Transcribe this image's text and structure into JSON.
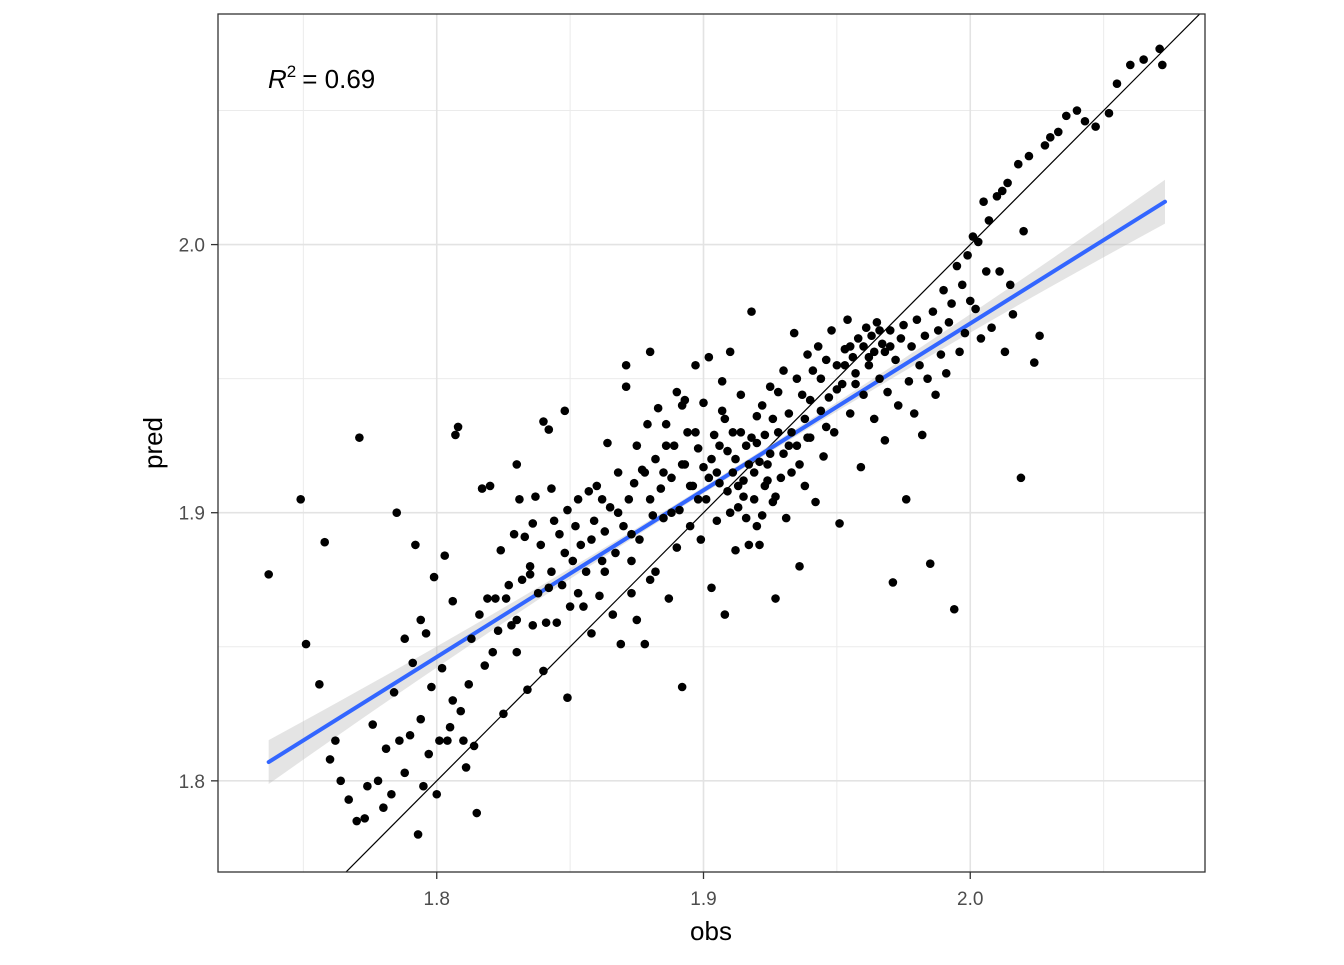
{
  "chart_data": {
    "type": "scatter",
    "title": "",
    "xlabel": "obs",
    "ylabel": "pred",
    "xlim": [
      1.718,
      2.088
    ],
    "ylim": [
      1.766,
      2.086
    ],
    "x_ticks": [
      1.8,
      1.9,
      2.0
    ],
    "y_ticks": [
      1.8,
      1.9,
      2.0
    ],
    "x_tick_labels": [
      "1.8",
      "1.9",
      "2.0"
    ],
    "y_tick_labels": [
      "1.8",
      "1.9",
      "2.0"
    ],
    "grid": true,
    "annotation": {
      "r2_symbol": "R",
      "r2_exponent": "2",
      "r2_text": "= 0.69",
      "r2_value": 0.69
    },
    "identity_line": {
      "slope": 1,
      "intercept": 0
    },
    "fit_line": {
      "method": "lm",
      "x_range": [
        1.737,
        2.073
      ],
      "y_start": 1.807,
      "y_end": 2.016,
      "se_band": true,
      "color": "#3366FF",
      "band_color": "#BBBBBB"
    },
    "points": [
      [
        1.737,
        1.877
      ],
      [
        1.749,
        1.905
      ],
      [
        1.751,
        1.851
      ],
      [
        1.756,
        1.836
      ],
      [
        1.758,
        1.889
      ],
      [
        1.76,
        1.808
      ],
      [
        1.762,
        1.815
      ],
      [
        1.764,
        1.8
      ],
      [
        1.767,
        1.793
      ],
      [
        1.77,
        1.785
      ],
      [
        1.771,
        1.928
      ],
      [
        1.773,
        1.786
      ],
      [
        1.774,
        1.798
      ],
      [
        1.776,
        1.821
      ],
      [
        1.778,
        1.8
      ],
      [
        1.78,
        1.79
      ],
      [
        1.781,
        1.812
      ],
      [
        1.783,
        1.795
      ],
      [
        1.784,
        1.833
      ],
      [
        1.785,
        1.9
      ],
      [
        1.786,
        1.815
      ],
      [
        1.788,
        1.803
      ],
      [
        1.788,
        1.853
      ],
      [
        1.79,
        1.817
      ],
      [
        1.791,
        1.844
      ],
      [
        1.792,
        1.888
      ],
      [
        1.793,
        1.78
      ],
      [
        1.794,
        1.823
      ],
      [
        1.794,
        1.86
      ],
      [
        1.795,
        1.798
      ],
      [
        1.796,
        1.855
      ],
      [
        1.797,
        1.81
      ],
      [
        1.798,
        1.835
      ],
      [
        1.799,
        1.876
      ],
      [
        1.8,
        1.795
      ],
      [
        1.801,
        1.815
      ],
      [
        1.802,
        1.842
      ],
      [
        1.803,
        1.884
      ],
      [
        1.804,
        1.815
      ],
      [
        1.805,
        1.82
      ],
      [
        1.806,
        1.83
      ],
      [
        1.806,
        1.867
      ],
      [
        1.807,
        1.929
      ],
      [
        1.808,
        1.932
      ],
      [
        1.809,
        1.826
      ],
      [
        1.81,
        1.815
      ],
      [
        1.811,
        1.805
      ],
      [
        1.812,
        1.836
      ],
      [
        1.813,
        1.853
      ],
      [
        1.814,
        1.813
      ],
      [
        1.815,
        1.788
      ],
      [
        1.816,
        1.862
      ],
      [
        1.817,
        1.909
      ],
      [
        1.818,
        1.843
      ],
      [
        1.819,
        1.868
      ],
      [
        1.82,
        1.91
      ],
      [
        1.821,
        1.848
      ],
      [
        1.822,
        1.868
      ],
      [
        1.823,
        1.856
      ],
      [
        1.824,
        1.886
      ],
      [
        1.825,
        1.825
      ],
      [
        1.826,
        1.868
      ],
      [
        1.827,
        1.873
      ],
      [
        1.828,
        1.858
      ],
      [
        1.829,
        1.892
      ],
      [
        1.83,
        1.918
      ],
      [
        1.83,
        1.848
      ],
      [
        1.831,
        1.905
      ],
      [
        1.832,
        1.875
      ],
      [
        1.833,
        1.891
      ],
      [
        1.834,
        1.834
      ],
      [
        1.835,
        1.877
      ],
      [
        1.836,
        1.896
      ],
      [
        1.836,
        1.858
      ],
      [
        1.837,
        1.906
      ],
      [
        1.838,
        1.87
      ],
      [
        1.839,
        1.888
      ],
      [
        1.84,
        1.934
      ],
      [
        1.84,
        1.841
      ],
      [
        1.841,
        1.859
      ],
      [
        1.842,
        1.931
      ],
      [
        1.843,
        1.878
      ],
      [
        1.843,
        1.909
      ],
      [
        1.844,
        1.897
      ],
      [
        1.845,
        1.859
      ],
      [
        1.846,
        1.892
      ],
      [
        1.847,
        1.873
      ],
      [
        1.848,
        1.938
      ],
      [
        1.849,
        1.901
      ],
      [
        1.849,
        1.831
      ],
      [
        1.85,
        1.865
      ],
      [
        1.851,
        1.882
      ],
      [
        1.852,
        1.895
      ],
      [
        1.853,
        1.905
      ],
      [
        1.854,
        1.888
      ],
      [
        1.855,
        1.865
      ],
      [
        1.856,
        1.878
      ],
      [
        1.857,
        1.908
      ],
      [
        1.858,
        1.855
      ],
      [
        1.859,
        1.897
      ],
      [
        1.86,
        1.91
      ],
      [
        1.861,
        1.869
      ],
      [
        1.862,
        1.905
      ],
      [
        1.862,
        1.882
      ],
      [
        1.863,
        1.893
      ],
      [
        1.864,
        1.926
      ],
      [
        1.865,
        1.902
      ],
      [
        1.866,
        1.862
      ],
      [
        1.867,
        1.885
      ],
      [
        1.868,
        1.915
      ],
      [
        1.869,
        1.851
      ],
      [
        1.87,
        1.895
      ],
      [
        1.871,
        1.947
      ],
      [
        1.871,
        1.955
      ],
      [
        1.872,
        1.905
      ],
      [
        1.873,
        1.882
      ],
      [
        1.874,
        1.911
      ],
      [
        1.875,
        1.86
      ],
      [
        1.876,
        1.89
      ],
      [
        1.877,
        1.916
      ],
      [
        1.878,
        1.851
      ],
      [
        1.879,
        1.933
      ],
      [
        1.88,
        1.96
      ],
      [
        1.881,
        1.899
      ],
      [
        1.882,
        1.92
      ],
      [
        1.882,
        1.878
      ],
      [
        1.883,
        1.939
      ],
      [
        1.884,
        1.909
      ],
      [
        1.885,
        1.898
      ],
      [
        1.886,
        1.933
      ],
      [
        1.887,
        1.868
      ],
      [
        1.888,
        1.913
      ],
      [
        1.889,
        1.925
      ],
      [
        1.89,
        1.887
      ],
      [
        1.891,
        1.901
      ],
      [
        1.892,
        1.835
      ],
      [
        1.893,
        1.942
      ],
      [
        1.893,
        1.918
      ],
      [
        1.894,
        1.93
      ],
      [
        1.895,
        1.895
      ],
      [
        1.896,
        1.91
      ],
      [
        1.897,
        1.955
      ],
      [
        1.898,
        1.924
      ],
      [
        1.899,
        1.89
      ],
      [
        1.9,
        1.917
      ],
      [
        1.9,
        1.941
      ],
      [
        1.901,
        1.905
      ],
      [
        1.902,
        1.958
      ],
      [
        1.903,
        1.872
      ],
      [
        1.904,
        1.929
      ],
      [
        1.905,
        1.897
      ],
      [
        1.906,
        1.911
      ],
      [
        1.907,
        1.949
      ],
      [
        1.908,
        1.862
      ],
      [
        1.909,
        1.923
      ],
      [
        1.91,
        1.9
      ],
      [
        1.91,
        1.96
      ],
      [
        1.911,
        1.93
      ],
      [
        1.912,
        1.886
      ],
      [
        1.913,
        1.91
      ],
      [
        1.914,
        1.944
      ],
      [
        1.915,
        1.906
      ],
      [
        1.916,
        1.925
      ],
      [
        1.917,
        1.888
      ],
      [
        1.918,
        1.975
      ],
      [
        1.919,
        1.915
      ],
      [
        1.92,
        1.936
      ],
      [
        1.92,
        1.895
      ],
      [
        1.921,
        1.919
      ],
      [
        1.922,
        1.899
      ],
      [
        1.923,
        1.929
      ],
      [
        1.924,
        1.912
      ],
      [
        1.925,
        1.947
      ],
      [
        1.926,
        1.904
      ],
      [
        1.927,
        1.868
      ],
      [
        1.928,
        1.93
      ],
      [
        1.929,
        1.913
      ],
      [
        1.93,
        1.953
      ],
      [
        1.931,
        1.898
      ],
      [
        1.932,
        1.937
      ],
      [
        1.933,
        1.915
      ],
      [
        1.934,
        1.967
      ],
      [
        1.935,
        1.925
      ],
      [
        1.936,
        1.88
      ],
      [
        1.937,
        1.944
      ],
      [
        1.938,
        1.91
      ],
      [
        1.939,
        1.959
      ],
      [
        1.94,
        1.928
      ],
      [
        1.941,
        1.953
      ],
      [
        1.942,
        1.904
      ],
      [
        1.943,
        1.962
      ],
      [
        1.944,
        1.938
      ],
      [
        1.945,
        1.921
      ],
      [
        1.946,
        1.957
      ],
      [
        1.947,
        1.943
      ],
      [
        1.948,
        1.968
      ],
      [
        1.949,
        1.93
      ],
      [
        1.95,
        1.955
      ],
      [
        1.951,
        1.896
      ],
      [
        1.952,
        1.948
      ],
      [
        1.953,
        1.961
      ],
      [
        1.954,
        1.972
      ],
      [
        1.955,
        1.937
      ],
      [
        1.956,
        1.958
      ],
      [
        1.957,
        1.952
      ],
      [
        1.958,
        1.965
      ],
      [
        1.959,
        1.917
      ],
      [
        1.96,
        1.944
      ],
      [
        1.961,
        1.969
      ],
      [
        1.962,
        1.958
      ],
      [
        1.963,
        1.966
      ],
      [
        1.964,
        1.935
      ],
      [
        1.965,
        1.971
      ],
      [
        1.966,
        1.95
      ],
      [
        1.967,
        1.963
      ],
      [
        1.968,
        1.927
      ],
      [
        1.969,
        1.945
      ],
      [
        1.97,
        1.968
      ],
      [
        1.971,
        1.874
      ],
      [
        1.972,
        1.957
      ],
      [
        1.973,
        1.94
      ],
      [
        1.974,
        1.965
      ],
      [
        1.975,
        1.97
      ],
      [
        1.976,
        1.905
      ],
      [
        1.977,
        1.949
      ],
      [
        1.978,
        1.962
      ],
      [
        1.979,
        1.937
      ],
      [
        1.98,
        1.972
      ],
      [
        1.981,
        1.955
      ],
      [
        1.982,
        1.929
      ],
      [
        1.983,
        1.966
      ],
      [
        1.984,
        1.95
      ],
      [
        1.985,
        1.881
      ],
      [
        1.986,
        1.975
      ],
      [
        1.987,
        1.944
      ],
      [
        1.988,
        1.968
      ],
      [
        1.989,
        1.959
      ],
      [
        1.99,
        1.983
      ],
      [
        1.991,
        1.952
      ],
      [
        1.992,
        1.971
      ],
      [
        1.993,
        1.978
      ],
      [
        1.994,
        1.864
      ],
      [
        1.995,
        1.992
      ],
      [
        1.996,
        1.96
      ],
      [
        1.997,
        1.985
      ],
      [
        1.998,
        1.967
      ],
      [
        1.999,
        1.996
      ],
      [
        2.0,
        1.979
      ],
      [
        2.001,
        2.003
      ],
      [
        2.002,
        1.976
      ],
      [
        2.003,
        2.001
      ],
      [
        2.004,
        1.965
      ],
      [
        2.005,
        2.016
      ],
      [
        2.006,
        1.99
      ],
      [
        2.007,
        2.009
      ],
      [
        2.008,
        1.969
      ],
      [
        2.01,
        2.018
      ],
      [
        2.011,
        1.99
      ],
      [
        2.012,
        2.02
      ],
      [
        2.013,
        1.96
      ],
      [
        2.014,
        2.023
      ],
      [
        2.015,
        1.985
      ],
      [
        2.016,
        1.974
      ],
      [
        2.018,
        2.03
      ],
      [
        2.019,
        1.913
      ],
      [
        2.02,
        2.005
      ],
      [
        2.022,
        2.033
      ],
      [
        2.024,
        1.956
      ],
      [
        2.026,
        1.966
      ],
      [
        2.028,
        2.037
      ],
      [
        2.03,
        2.04
      ],
      [
        2.033,
        2.042
      ],
      [
        2.036,
        2.048
      ],
      [
        2.04,
        2.05
      ],
      [
        2.043,
        2.046
      ],
      [
        2.047,
        2.044
      ],
      [
        2.052,
        2.049
      ],
      [
        2.055,
        2.06
      ],
      [
        2.06,
        2.067
      ],
      [
        2.065,
        2.069
      ],
      [
        2.071,
        2.073
      ],
      [
        2.072,
        2.067
      ],
      [
        1.875,
        1.925
      ],
      [
        1.878,
        1.915
      ],
      [
        1.89,
        1.945
      ],
      [
        1.895,
        1.91
      ],
      [
        1.905,
        1.915
      ],
      [
        1.908,
        1.935
      ],
      [
        1.912,
        1.92
      ],
      [
        1.915,
        1.912
      ],
      [
        1.918,
        1.928
      ],
      [
        1.922,
        1.94
      ],
      [
        1.925,
        1.922
      ],
      [
        1.928,
        1.945
      ],
      [
        1.932,
        1.925
      ],
      [
        1.935,
        1.95
      ],
      [
        1.938,
        1.935
      ],
      [
        1.94,
        1.942
      ],
      [
        1.944,
        1.95
      ],
      [
        1.946,
        1.932
      ],
      [
        1.95,
        1.946
      ],
      [
        1.953,
        1.955
      ],
      [
        1.955,
        1.962
      ],
      [
        1.957,
        1.948
      ],
      [
        1.96,
        1.962
      ],
      [
        1.962,
        1.955
      ],
      [
        1.964,
        1.96
      ],
      [
        1.966,
        1.968
      ],
      [
        1.968,
        1.96
      ],
      [
        1.97,
        1.962
      ],
      [
        1.913,
        1.902
      ],
      [
        1.916,
        1.898
      ],
      [
        1.919,
        1.905
      ],
      [
        1.921,
        1.888
      ],
      [
        1.924,
        1.918
      ],
      [
        1.927,
        1.906
      ],
      [
        1.93,
        1.922
      ],
      [
        1.933,
        1.93
      ],
      [
        1.936,
        1.918
      ],
      [
        1.939,
        1.928
      ],
      [
        1.898,
        1.905
      ],
      [
        1.902,
        1.913
      ],
      [
        1.906,
        1.925
      ],
      [
        1.909,
        1.908
      ],
      [
        1.911,
        1.915
      ],
      [
        1.914,
        1.93
      ],
      [
        1.917,
        1.918
      ],
      [
        1.92,
        1.926
      ],
      [
        1.923,
        1.91
      ],
      [
        1.926,
        1.935
      ],
      [
        1.83,
        1.86
      ],
      [
        1.835,
        1.88
      ],
      [
        1.842,
        1.872
      ],
      [
        1.848,
        1.885
      ],
      [
        1.853,
        1.87
      ],
      [
        1.858,
        1.89
      ],
      [
        1.863,
        1.878
      ],
      [
        1.868,
        1.9
      ],
      [
        1.873,
        1.892
      ],
      [
        1.88,
        1.905
      ],
      [
        1.885,
        1.915
      ],
      [
        1.888,
        1.9
      ],
      [
        1.892,
        1.918
      ],
      [
        1.897,
        1.93
      ],
      [
        1.903,
        1.92
      ],
      [
        1.907,
        1.938
      ],
      [
        1.873,
        1.87
      ],
      [
        1.88,
        1.875
      ],
      [
        1.886,
        1.925
      ],
      [
        1.892,
        1.94
      ]
    ]
  }
}
